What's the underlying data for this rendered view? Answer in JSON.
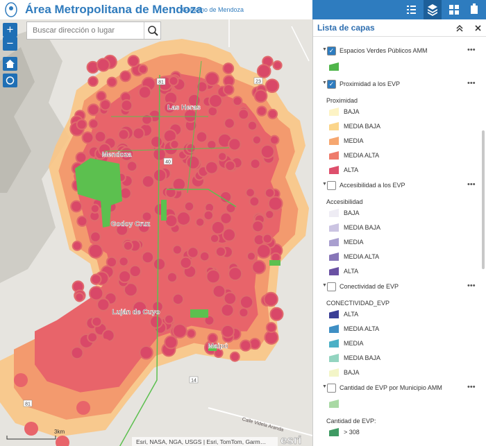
{
  "header": {
    "title": "Área Metropolitana de Mendoza",
    "subtitle": "Gobierno de Mendoza"
  },
  "search": {
    "placeholder": "Buscar dirección o lugar"
  },
  "map": {
    "labels": [
      "Las Heras",
      "Mendoza",
      "Godoy Cruz",
      "Luján de Cuyo",
      "Maipú",
      "Calle Videla Aranda"
    ],
    "roads": [
      "81",
      "23",
      "40",
      "14",
      "81"
    ],
    "scale": "3km",
    "attribution": "Esri, NASA, NGA, USGS | Esri, TomTom, Garm…",
    "logo": "esri"
  },
  "panel": {
    "title": "Lista de capas",
    "layers": [
      {
        "name": "Espacios Verdes Públicos AMM",
        "checked": true,
        "legend": [
          {
            "color": "#4fb54a"
          }
        ]
      },
      {
        "name": "Proximidad a los EVP",
        "checked": true,
        "legend": [
          {
            "heading": "Proximidad"
          },
          {
            "label": "BAJA",
            "color": "#fdf3c4"
          },
          {
            "label": "MEDIA BAJA",
            "color": "#fbd58a"
          },
          {
            "label": "MEDIA",
            "color": "#f6a770"
          },
          {
            "label": "MEDIA ALTA",
            "color": "#ee7b6b"
          },
          {
            "label": "ALTA",
            "color": "#de4f6c"
          }
        ]
      },
      {
        "name": "Accesibilidad a los EVP",
        "checked": false,
        "legend": [
          {
            "heading": "Accesibilidad"
          },
          {
            "label": "BAJA",
            "color": "#eeecf4"
          },
          {
            "label": "MEDIA BAJA",
            "color": "#cbc4e2"
          },
          {
            "label": "MEDIA",
            "color": "#a99fcf"
          },
          {
            "label": "MEDIA ALTA",
            "color": "#8776b8"
          },
          {
            "label": "ALTA",
            "color": "#6a51a3"
          }
        ]
      },
      {
        "name": "Conectividad de EVP",
        "checked": false,
        "legend": [
          {
            "heading": "CONECTIVIDAD_EVP"
          },
          {
            "label": "ALTA",
            "color": "#3a3e96"
          },
          {
            "label": "MEDIA ALTA",
            "color": "#3f8fc4"
          },
          {
            "label": "MEDIA",
            "color": "#4bb0c6"
          },
          {
            "label": "MEDIA BAJA",
            "color": "#93d4c0"
          },
          {
            "label": "BAJA",
            "color": "#f3f5c7"
          }
        ]
      },
      {
        "name": "Cantidad de EVP por Municipio AMM",
        "checked": false,
        "legend": [
          {
            "color": "#a9d9a4"
          },
          {
            "heading": "Cantidad de EVP:"
          },
          {
            "label": "> 308",
            "color": "#3f9a63"
          }
        ]
      }
    ]
  }
}
